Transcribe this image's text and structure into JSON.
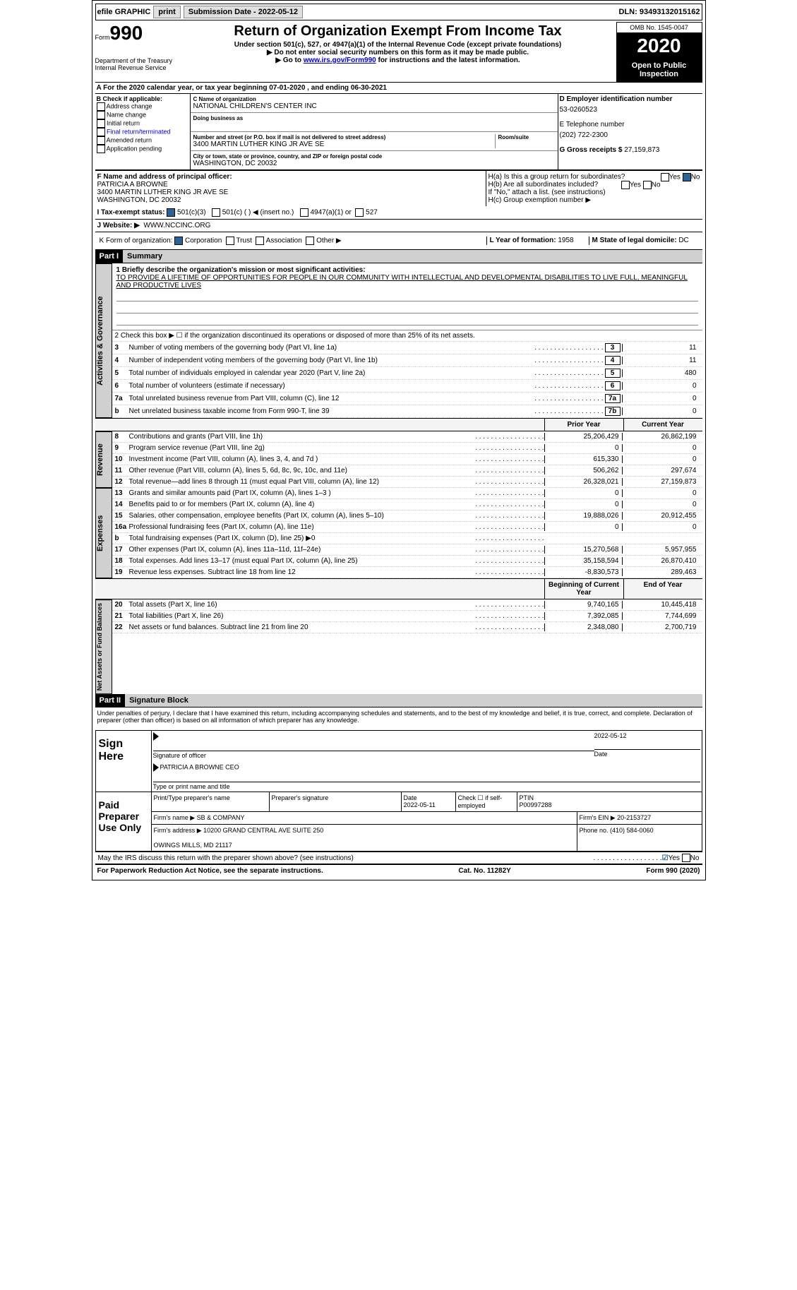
{
  "topbar": {
    "efile": "efile GRAPHIC",
    "print": "print",
    "sub_date_label": "Submission Date - 2022-05-12",
    "dln": "DLN: 93493132015162"
  },
  "header": {
    "form_word": "Form",
    "form_num": "990",
    "dept": "Department of the Treasury\nInternal Revenue Service",
    "title": "Return of Organization Exempt From Income Tax",
    "sub1": "Under section 501(c), 527, or 4947(a)(1) of the Internal Revenue Code (except private foundations)",
    "sub2": "▶ Do not enter social security numbers on this form as it may be made public.",
    "sub3_pre": "▶ Go to ",
    "sub3_link": "www.irs.gov/Form990",
    "sub3_post": " for instructions and the latest information.",
    "omb": "OMB No. 1545-0047",
    "year": "2020",
    "inspect": "Open to Public Inspection"
  },
  "period": "A For the 2020 calendar year, or tax year beginning 07-01-2020  , and ending 06-30-2021",
  "boxB": {
    "label": "B Check if applicable:",
    "opts": [
      "Address change",
      "Name change",
      "Initial return",
      "Final return/terminated",
      "Amended return",
      "Application pending"
    ]
  },
  "boxC": {
    "name_lbl": "C Name of organization",
    "name": "NATIONAL CHILDREN'S CENTER INC",
    "dba_lbl": "Doing business as",
    "addr_lbl": "Number and street (or P.O. box if mail is not delivered to street address)",
    "room_lbl": "Room/suite",
    "addr": "3400 MARTIN LUTHER KING JR AVE SE",
    "city_lbl": "City or town, state or province, country, and ZIP or foreign postal code",
    "city": "WASHINGTON, DC  20032"
  },
  "boxD": {
    "lbl": "D Employer identification number",
    "val": "53-0260523"
  },
  "boxE": {
    "lbl": "E Telephone number",
    "val": "(202) 722-2300"
  },
  "boxG": {
    "lbl": "G Gross receipts $",
    "val": "27,159,873"
  },
  "boxF": {
    "lbl": "F  Name and address of principal officer:",
    "name": "PATRICIA A BROWNE",
    "addr1": "3400 MARTIN LUTHER KING JR AVE SE",
    "addr2": "WASHINGTON, DC  20032"
  },
  "boxH": {
    "ha": "H(a)  Is this a group return for subordinates?",
    "ha_yes": "Yes",
    "ha_no": "No",
    "hb": "H(b)  Are all subordinates included?",
    "hb_yes": "Yes",
    "hb_no": "No",
    "hb_note": "If \"No,\" attach a list. (see instructions)",
    "hc": "H(c)  Group exemption number ▶"
  },
  "rowI": {
    "lbl": "I   Tax-exempt status:",
    "o1": "501(c)(3)",
    "o2": "501(c) (   )  ◀ (insert no.)",
    "o3": "4947(a)(1) or",
    "o4": "527"
  },
  "rowJ": {
    "lbl": "J   Website: ▶",
    "val": "WWW.NCCINC.ORG"
  },
  "rowK": {
    "lbl": "K Form of organization:",
    "o1": "Corporation",
    "o2": "Trust",
    "o3": "Association",
    "o4": "Other ▶",
    "l_lbl": "L Year of formation:",
    "l_val": "1958",
    "m_lbl": "M State of legal domicile:",
    "m_val": "DC"
  },
  "part1": {
    "hdr": "Part I",
    "title": "Summary"
  },
  "gov": {
    "side": "Activities & Governance",
    "l1_lbl": "1  Briefly describe the organization's mission or most significant activities:",
    "l1_txt": "TO PROVIDE A LIFETIME OF OPPORTUNITIES FOR PEOPLE IN OUR COMMUNITY WITH INTELLECTUAL AND DEVELOPMENTAL DISABILITIES TO LIVE FULL, MEANINGFUL AND PRODUCTIVE LIVES",
    "l2": "2   Check this box ▶ ☐  if the organization discontinued its operations or disposed of more than 25% of its net assets.",
    "rows": [
      {
        "n": "3",
        "d": "Number of voting members of the governing body (Part VI, line 1a)",
        "b": "3",
        "v": "11"
      },
      {
        "n": "4",
        "d": "Number of independent voting members of the governing body (Part VI, line 1b)",
        "b": "4",
        "v": "11"
      },
      {
        "n": "5",
        "d": "Total number of individuals employed in calendar year 2020 (Part V, line 2a)",
        "b": "5",
        "v": "480"
      },
      {
        "n": "6",
        "d": "Total number of volunteers (estimate if necessary)",
        "b": "6",
        "v": "0"
      },
      {
        "n": "7a",
        "d": "Total unrelated business revenue from Part VIII, column (C), line 12",
        "b": "7a",
        "v": "0"
      },
      {
        "n": "b",
        "d": "Net unrelated business taxable income from Form 990-T, line 39",
        "b": "7b",
        "v": "0"
      }
    ]
  },
  "cols": {
    "prior": "Prior Year",
    "curr": "Current Year",
    "begin": "Beginning of Current Year",
    "end": "End of Year"
  },
  "rev": {
    "side": "Revenue",
    "rows": [
      {
        "n": "8",
        "d": "Contributions and grants (Part VIII, line 1h)",
        "p": "25,206,429",
        "c": "26,862,199"
      },
      {
        "n": "9",
        "d": "Program service revenue (Part VIII, line 2g)",
        "p": "0",
        "c": "0"
      },
      {
        "n": "10",
        "d": "Investment income (Part VIII, column (A), lines 3, 4, and 7d )",
        "p": "615,330",
        "c": "0"
      },
      {
        "n": "11",
        "d": "Other revenue (Part VIII, column (A), lines 5, 6d, 8c, 9c, 10c, and 11e)",
        "p": "506,262",
        "c": "297,674"
      },
      {
        "n": "12",
        "d": "Total revenue—add lines 8 through 11 (must equal Part VIII, column (A), line 12)",
        "p": "26,328,021",
        "c": "27,159,873"
      }
    ]
  },
  "exp": {
    "side": "Expenses",
    "rows": [
      {
        "n": "13",
        "d": "Grants and similar amounts paid (Part IX, column (A), lines 1–3 )",
        "p": "0",
        "c": "0"
      },
      {
        "n": "14",
        "d": "Benefits paid to or for members (Part IX, column (A), line 4)",
        "p": "0",
        "c": "0"
      },
      {
        "n": "15",
        "d": "Salaries, other compensation, employee benefits (Part IX, column (A), lines 5–10)",
        "p": "19,888,026",
        "c": "20,912,455"
      },
      {
        "n": "16a",
        "d": "Professional fundraising fees (Part IX, column (A), line 11e)",
        "p": "0",
        "c": "0"
      },
      {
        "n": "b",
        "d": "Total fundraising expenses (Part IX, column (D), line 25) ▶0",
        "p": "",
        "c": "",
        "gray": true
      },
      {
        "n": "17",
        "d": "Other expenses (Part IX, column (A), lines 11a–11d, 11f–24e)",
        "p": "15,270,568",
        "c": "5,957,955"
      },
      {
        "n": "18",
        "d": "Total expenses. Add lines 13–17 (must equal Part IX, column (A), line 25)",
        "p": "35,158,594",
        "c": "26,870,410"
      },
      {
        "n": "19",
        "d": "Revenue less expenses. Subtract line 18 from line 12",
        "p": "-8,830,573",
        "c": "289,463"
      }
    ]
  },
  "net": {
    "side": "Net Assets or Fund Balances",
    "rows": [
      {
        "n": "20",
        "d": "Total assets (Part X, line 16)",
        "p": "9,740,165",
        "c": "10,445,418"
      },
      {
        "n": "21",
        "d": "Total liabilities (Part X, line 26)",
        "p": "7,392,085",
        "c": "7,744,699"
      },
      {
        "n": "22",
        "d": "Net assets or fund balances. Subtract line 21 from line 20",
        "p": "2,348,080",
        "c": "2,700,719"
      }
    ]
  },
  "part2": {
    "hdr": "Part II",
    "title": "Signature Block"
  },
  "penalty": "Under penalties of perjury, I declare that I have examined this return, including accompanying schedules and statements, and to the best of my knowledge and belief, it is true, correct, and complete. Declaration of preparer (other than officer) is based on all information of which preparer has any knowledge.",
  "sign": {
    "lbl": "Sign Here",
    "sig_lbl": "Signature of officer",
    "date_lbl": "Date",
    "date": "2022-05-12",
    "name": "PATRICIA A BROWNE  CEO",
    "name_lbl": "Type or print name and title"
  },
  "paid": {
    "lbl": "Paid Preparer Use Only",
    "r1": {
      "c1": "Print/Type preparer's name",
      "c2": "Preparer's signature",
      "c3": "Date\n2022-05-11",
      "c4": "Check ☐ if self-employed",
      "c5": "PTIN\nP00997288"
    },
    "r2": {
      "c1": "Firm's name   ▶ SB & COMPANY",
      "c2": "Firm's EIN ▶ 20-2153727"
    },
    "r3": {
      "c1": "Firm's address ▶ 10200 GRAND CENTRAL AVE SUITE 250\n\nOWINGS MILLS, MD  21117",
      "c2": "Phone no. (410) 584-0060"
    }
  },
  "discuss": {
    "q": "May the IRS discuss this return with the preparer shown above? (see instructions)",
    "yes": "Yes",
    "no": "No"
  },
  "footer": {
    "l": "For Paperwork Reduction Act Notice, see the separate instructions.",
    "m": "Cat. No. 11282Y",
    "r": "Form 990 (2020)"
  }
}
